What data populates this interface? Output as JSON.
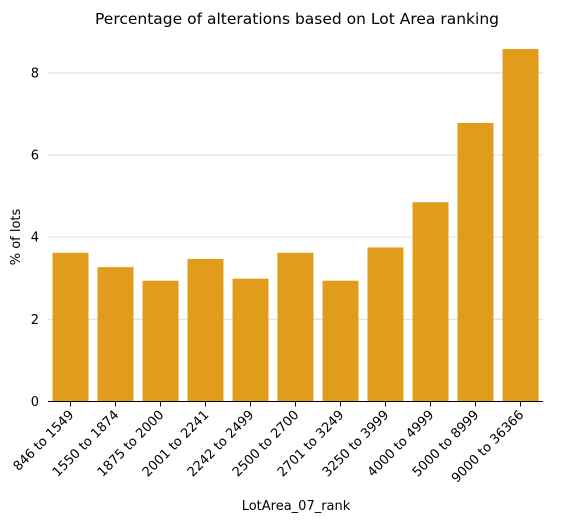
{
  "chart_data": {
    "type": "bar",
    "title": "Percentage of alterations based on Lot Area ranking",
    "xlabel": "LotArea_07_rank",
    "ylabel": "% of lots",
    "categories": [
      "846 to 1549",
      "1550 to 1874",
      "1875 to 2000",
      "2001 to 2241",
      "2242 to 2499",
      "2500 to 2700",
      "2701 to 3249",
      "3250 to 3999",
      "4000 to 4999",
      "5000 to 8999",
      "9000 to 36366"
    ],
    "values": [
      3.62,
      3.27,
      2.94,
      3.47,
      2.99,
      3.62,
      2.94,
      3.75,
      4.85,
      6.78,
      8.58
    ],
    "ylim": [
      0,
      8.8
    ],
    "yticks": [
      "0",
      "2",
      "4",
      "6",
      "8"
    ],
    "grid": true,
    "bar_color": "#e29c1c",
    "grid_color": "#e3e3e3"
  }
}
